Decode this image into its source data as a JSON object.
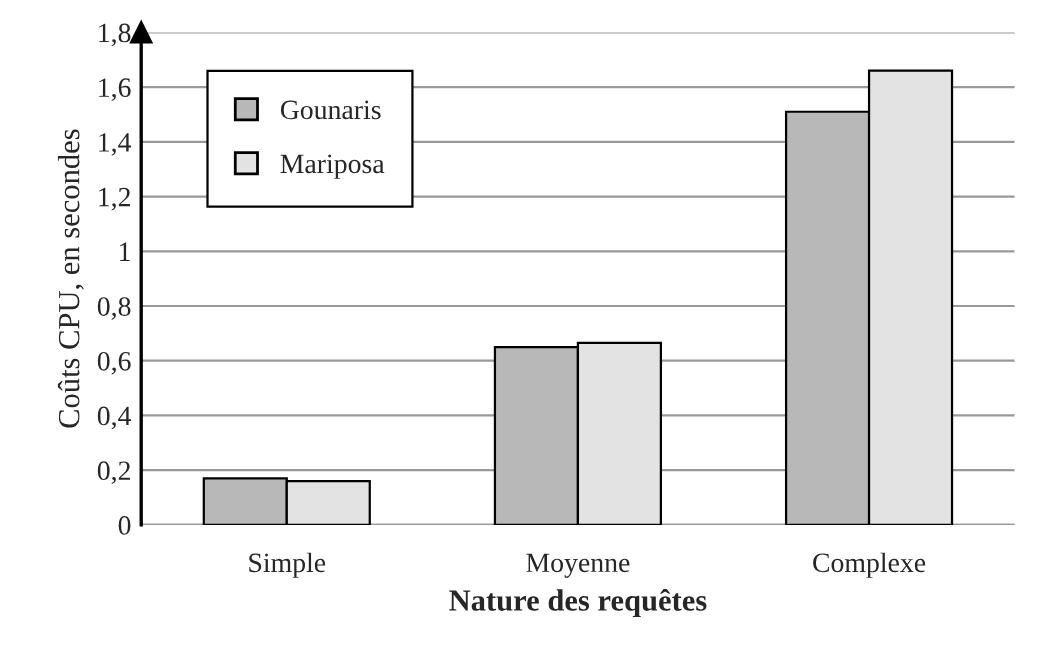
{
  "chart_data": {
    "type": "bar",
    "xlabel": "Nature des requêtes",
    "ylabel": "Coûts CPU, en secondes",
    "categories": [
      "Simple",
      "Moyenne",
      "Complexe"
    ],
    "series": [
      {
        "name": "Gounaris",
        "color": "#b8b8b8",
        "values": [
          0.17,
          0.65,
          1.51
        ]
      },
      {
        "name": "Mariposa",
        "color": "#e3e3e3",
        "values": [
          0.16,
          0.665,
          1.66
        ]
      }
    ],
    "ylim": [
      0,
      1.8
    ],
    "yticks": [
      {
        "value": 0,
        "label": "0"
      },
      {
        "value": 0.2,
        "label": "0,2"
      },
      {
        "value": 0.4,
        "label": "0,4"
      },
      {
        "value": 0.6,
        "label": "0,6"
      },
      {
        "value": 0.8,
        "label": "0,8"
      },
      {
        "value": 1,
        "label": "1"
      },
      {
        "value": 1.2,
        "label": "1,2"
      },
      {
        "value": 1.4,
        "label": "1,4"
      },
      {
        "value": 1.6,
        "label": "1,6"
      },
      {
        "value": 1.8,
        "label": "1,8"
      }
    ],
    "grid": "y",
    "legend": "top left"
  }
}
